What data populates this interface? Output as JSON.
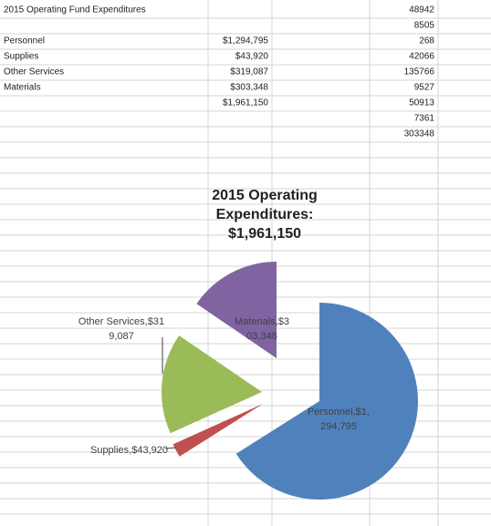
{
  "sheet": {
    "title": "2015 Operating Fund Expenditures",
    "items": [
      {
        "name": "Personnel",
        "amount": "$1,294,795"
      },
      {
        "name": "Supplies",
        "amount": "$43,920"
      },
      {
        "name": "Other Services",
        "amount": "$319,087"
      },
      {
        "name": "Materials",
        "amount": "$303,348"
      }
    ],
    "total": "$1,961,150",
    "column_d": [
      48942,
      8505,
      268,
      42066,
      135766,
      9527,
      50913,
      7361,
      303348
    ]
  },
  "chart_data": {
    "type": "pie",
    "title": "2015 Operating Expenditures: $1,961,150",
    "values": [
      1294795,
      43920,
      319087,
      303348
    ],
    "value_labels": [
      "Personnel,$1,294,795",
      "Supplies,$43,920",
      "Other Services,$319,087",
      "Materials,$303,348"
    ],
    "colors": [
      "#4f81bd",
      "#c0504d",
      "#9bbb59",
      "#8064a2"
    ]
  }
}
